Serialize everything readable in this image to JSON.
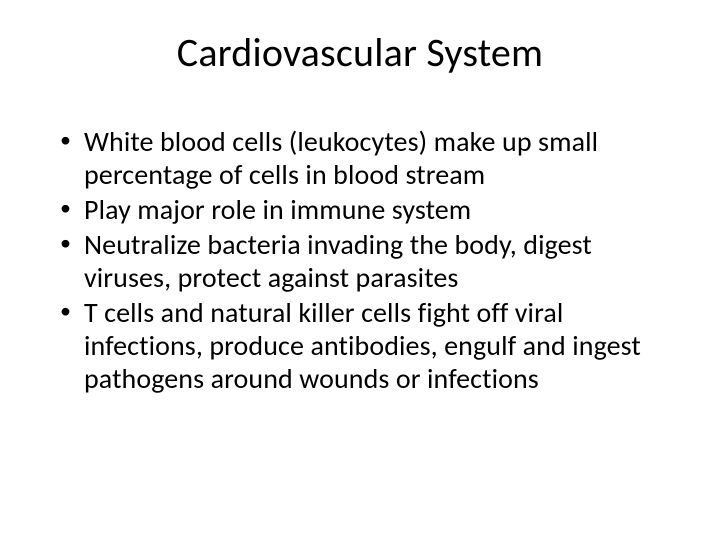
{
  "slide": {
    "title": "Cardiovascular System",
    "title_fontsize": 40,
    "title_color": "#000000",
    "title_align": "center",
    "background_color": "#ffffff",
    "body_fontsize": 28,
    "body_color": "#000000",
    "bullets": [
      "White blood cells (leukocytes) make up small percentage of cells in  blood stream",
      "Play major role in immune system",
      "Neutralize bacteria invading the body, digest viruses, protect against parasites",
      "T cells and natural killer cells fight off viral infections, produce antibodies, engulf and ingest pathogens around wounds or infections"
    ]
  }
}
